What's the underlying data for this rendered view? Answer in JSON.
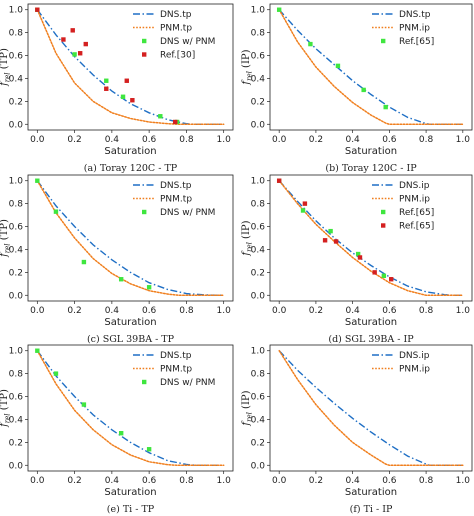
{
  "colors": {
    "dns": "#1f6fc5",
    "pnm": "#f07f1e",
    "dns_pnm": "#3fe63f",
    "ref": "#d42020"
  },
  "chart_data": [
    {
      "type": "line",
      "caption": "(a) Toray 120C - TP",
      "xlabel": "Saturation",
      "ylabel": "f_rel (TP)",
      "xlim": [
        -0.05,
        1.05
      ],
      "ylim": [
        -0.05,
        1.05
      ],
      "xticks": [
        "0.0",
        "0.2",
        "0.4",
        "0.6",
        "0.8",
        "1.0"
      ],
      "yticks": [
        "0.0",
        "0.2",
        "0.4",
        "0.6",
        "0.8",
        "1.0"
      ],
      "legend_position": "upper-right",
      "series": [
        {
          "name": "DNS.tp",
          "kind": "dashdot",
          "color": "#1f6fc5",
          "x": [
            0,
            0.1,
            0.2,
            0.3,
            0.4,
            0.5,
            0.6,
            0.7,
            0.8,
            0.85,
            1.0
          ],
          "y": [
            1.0,
            0.78,
            0.59,
            0.43,
            0.29,
            0.18,
            0.1,
            0.04,
            0.005,
            0.0,
            0.0
          ]
        },
        {
          "name": "PNM.tp",
          "kind": "dotted",
          "color": "#f07f1e",
          "x": [
            0,
            0.1,
            0.2,
            0.3,
            0.4,
            0.5,
            0.6,
            0.7,
            0.76,
            1.0
          ],
          "y": [
            1.0,
            0.62,
            0.36,
            0.2,
            0.1,
            0.05,
            0.02,
            0.005,
            0.0,
            0.0
          ]
        },
        {
          "name": "DNS w/ PNM",
          "kind": "marker",
          "color": "#3fe63f",
          "x": [
            0.0,
            0.2,
            0.37,
            0.46,
            0.66,
            0.75
          ],
          "y": [
            1.0,
            0.61,
            0.38,
            0.24,
            0.07,
            0.02
          ]
        },
        {
          "name": "Ref.[30]",
          "kind": "marker",
          "color": "#d42020",
          "x": [
            0.0,
            0.14,
            0.19,
            0.23,
            0.26,
            0.37,
            0.48,
            0.51,
            0.74
          ],
          "y": [
            1.0,
            0.74,
            0.82,
            0.62,
            0.7,
            0.31,
            0.38,
            0.21,
            0.02
          ]
        }
      ]
    },
    {
      "type": "line",
      "caption": "(b) Toray 120C - IP",
      "xlabel": "Saturation",
      "ylabel": "f_rel (IP)",
      "xlim": [
        -0.05,
        1.05
      ],
      "ylim": [
        -0.05,
        1.05
      ],
      "xticks": [
        "0.0",
        "0.2",
        "0.4",
        "0.6",
        "0.8",
        "1.0"
      ],
      "yticks": [
        "0.0",
        "0.2",
        "0.4",
        "0.6",
        "0.8",
        "1.0"
      ],
      "legend_position": "upper-right",
      "series": [
        {
          "name": "DNS.tp",
          "kind": "dashdot",
          "color": "#1f6fc5",
          "x": [
            0,
            0.1,
            0.2,
            0.3,
            0.4,
            0.5,
            0.6,
            0.7,
            0.8,
            0.82,
            1.0
          ],
          "y": [
            1.0,
            0.82,
            0.66,
            0.52,
            0.38,
            0.26,
            0.15,
            0.06,
            0.005,
            0.0,
            0.0
          ]
        },
        {
          "name": "PNM.ip",
          "kind": "dotted",
          "color": "#f07f1e",
          "x": [
            0,
            0.1,
            0.2,
            0.3,
            0.4,
            0.5,
            0.58,
            0.6,
            1.0
          ],
          "y": [
            1.0,
            0.72,
            0.5,
            0.33,
            0.19,
            0.08,
            0.01,
            0.0,
            0.0
          ]
        },
        {
          "name": "Ref.[65]",
          "kind": "marker",
          "color": "#3fe63f",
          "x": [
            0.0,
            0.17,
            0.32,
            0.46,
            0.58
          ],
          "y": [
            1.0,
            0.7,
            0.51,
            0.3,
            0.15
          ]
        }
      ]
    },
    {
      "type": "line",
      "caption": "(c) SGL 39BA - TP",
      "xlabel": "Saturation",
      "ylabel": "f_rel (TP)",
      "xlim": [
        -0.05,
        1.05
      ],
      "ylim": [
        -0.05,
        1.05
      ],
      "xticks": [
        "0.0",
        "0.2",
        "0.4",
        "0.6",
        "0.8",
        "1.0"
      ],
      "yticks": [
        "0.0",
        "0.2",
        "0.4",
        "0.6",
        "0.8",
        "1.0"
      ],
      "legend_position": "upper-right",
      "series": [
        {
          "name": "DNS.tp",
          "kind": "dashdot",
          "color": "#1f6fc5",
          "x": [
            0,
            0.1,
            0.2,
            0.3,
            0.4,
            0.5,
            0.6,
            0.7,
            0.8,
            0.9,
            1.0
          ],
          "y": [
            1.0,
            0.78,
            0.6,
            0.44,
            0.31,
            0.2,
            0.11,
            0.05,
            0.015,
            0.003,
            0.0
          ]
        },
        {
          "name": "PNM.tp",
          "kind": "dotted",
          "color": "#f07f1e",
          "x": [
            0,
            0.1,
            0.2,
            0.3,
            0.4,
            0.5,
            0.6,
            0.7,
            0.76,
            1.0
          ],
          "y": [
            1.0,
            0.72,
            0.5,
            0.32,
            0.19,
            0.1,
            0.04,
            0.01,
            0.0,
            0.0
          ]
        },
        {
          "name": "DNS w/ PNM",
          "kind": "marker",
          "color": "#3fe63f",
          "x": [
            0.0,
            0.1,
            0.25,
            0.45,
            0.6
          ],
          "y": [
            1.0,
            0.73,
            0.29,
            0.14,
            0.07
          ]
        }
      ]
    },
    {
      "type": "line",
      "caption": "(d) SGL 39BA - IP",
      "xlabel": "Saturation",
      "ylabel": "f_rel (IP)",
      "xlim": [
        -0.05,
        1.05
      ],
      "ylim": [
        -0.05,
        1.05
      ],
      "xticks": [
        "0.0",
        "0.2",
        "0.4",
        "0.6",
        "0.8",
        "1.0"
      ],
      "yticks": [
        "0.0",
        "0.2",
        "0.4",
        "0.6",
        "0.8",
        "1.0"
      ],
      "legend_position": "upper-right",
      "series": [
        {
          "name": "DNS.ip",
          "kind": "dashdot",
          "color": "#1f6fc5",
          "x": [
            0,
            0.1,
            0.2,
            0.3,
            0.4,
            0.5,
            0.6,
            0.7,
            0.8,
            0.9,
            0.95,
            1.0
          ],
          "y": [
            1.0,
            0.82,
            0.65,
            0.5,
            0.37,
            0.26,
            0.16,
            0.08,
            0.03,
            0.005,
            0.0,
            0.0
          ]
        },
        {
          "name": "PNM.ip",
          "kind": "dotted",
          "color": "#f07f1e",
          "x": [
            0,
            0.1,
            0.2,
            0.3,
            0.4,
            0.5,
            0.6,
            0.7,
            0.8,
            1.0
          ],
          "y": [
            1.0,
            0.8,
            0.62,
            0.47,
            0.33,
            0.21,
            0.11,
            0.04,
            0.0,
            0.0
          ]
        },
        {
          "name": "Ref.[65]",
          "kind": "marker",
          "color": "#3fe63f",
          "x": [
            0.0,
            0.13,
            0.28,
            0.43,
            0.57
          ],
          "y": [
            1.0,
            0.74,
            0.56,
            0.36,
            0.17
          ]
        },
        {
          "name": "Ref.[65]",
          "kind": "marker",
          "color": "#d42020",
          "x": [
            0.0,
            0.14,
            0.25,
            0.31,
            0.44,
            0.52,
            0.61
          ],
          "y": [
            1.0,
            0.8,
            0.48,
            0.47,
            0.33,
            0.2,
            0.14
          ]
        }
      ]
    },
    {
      "type": "line",
      "caption": "(e) Ti - TP",
      "xlabel": "Saturation",
      "ylabel": "f_rel (TP)",
      "xlim": [
        -0.05,
        1.05
      ],
      "ylim": [
        -0.05,
        1.05
      ],
      "xticks": [
        "0.0",
        "0.2",
        "0.4",
        "0.6",
        "0.8",
        "1.0"
      ],
      "yticks": [
        "0.0",
        "0.2",
        "0.4",
        "0.6",
        "0.8",
        "1.0"
      ],
      "legend_position": "upper-right",
      "series": [
        {
          "name": "DNS.tp",
          "kind": "dashdot",
          "color": "#1f6fc5",
          "x": [
            0,
            0.1,
            0.2,
            0.3,
            0.4,
            0.5,
            0.6,
            0.7,
            0.8,
            0.85,
            1.0
          ],
          "y": [
            1.0,
            0.78,
            0.6,
            0.44,
            0.31,
            0.2,
            0.11,
            0.04,
            0.008,
            0.0,
            0.0
          ]
        },
        {
          "name": "PNM.tp",
          "kind": "dotted",
          "color": "#f07f1e",
          "x": [
            0,
            0.1,
            0.2,
            0.3,
            0.4,
            0.5,
            0.6,
            0.7,
            0.75,
            1.0
          ],
          "y": [
            1.0,
            0.71,
            0.48,
            0.31,
            0.18,
            0.09,
            0.03,
            0.005,
            0.0,
            0.0
          ]
        },
        {
          "name": "DNS w/ PNM",
          "kind": "marker",
          "color": "#3fe63f",
          "x": [
            0.0,
            0.1,
            0.25,
            0.45,
            0.6
          ],
          "y": [
            1.0,
            0.8,
            0.53,
            0.28,
            0.14
          ]
        }
      ]
    },
    {
      "type": "line",
      "caption": "(f) Ti - IP",
      "xlabel": "Saturation",
      "ylabel": "f_rel (IP)",
      "xlim": [
        -0.05,
        1.05
      ],
      "ylim": [
        -0.05,
        1.05
      ],
      "xticks": [
        "0.0",
        "0.2",
        "0.4",
        "0.6",
        "0.8",
        "1.0"
      ],
      "yticks": [
        "0.0",
        "0.2",
        "0.4",
        "0.6",
        "0.8",
        "1.0"
      ],
      "legend_position": "upper-right",
      "series": [
        {
          "name": "DNS.ip",
          "kind": "dashdot",
          "color": "#1f6fc5",
          "x": [
            0,
            0.1,
            0.2,
            0.3,
            0.4,
            0.5,
            0.6,
            0.7,
            0.8,
            0.82,
            1.0
          ],
          "y": [
            1.0,
            0.83,
            0.68,
            0.54,
            0.41,
            0.29,
            0.18,
            0.08,
            0.01,
            0.0,
            0.0
          ]
        },
        {
          "name": "PNM.ip",
          "kind": "dotted",
          "color": "#f07f1e",
          "x": [
            0,
            0.1,
            0.2,
            0.3,
            0.4,
            0.5,
            0.58,
            0.6,
            1.0
          ],
          "y": [
            1.0,
            0.75,
            0.53,
            0.35,
            0.2,
            0.09,
            0.01,
            0.0,
            0.0
          ]
        }
      ]
    }
  ]
}
